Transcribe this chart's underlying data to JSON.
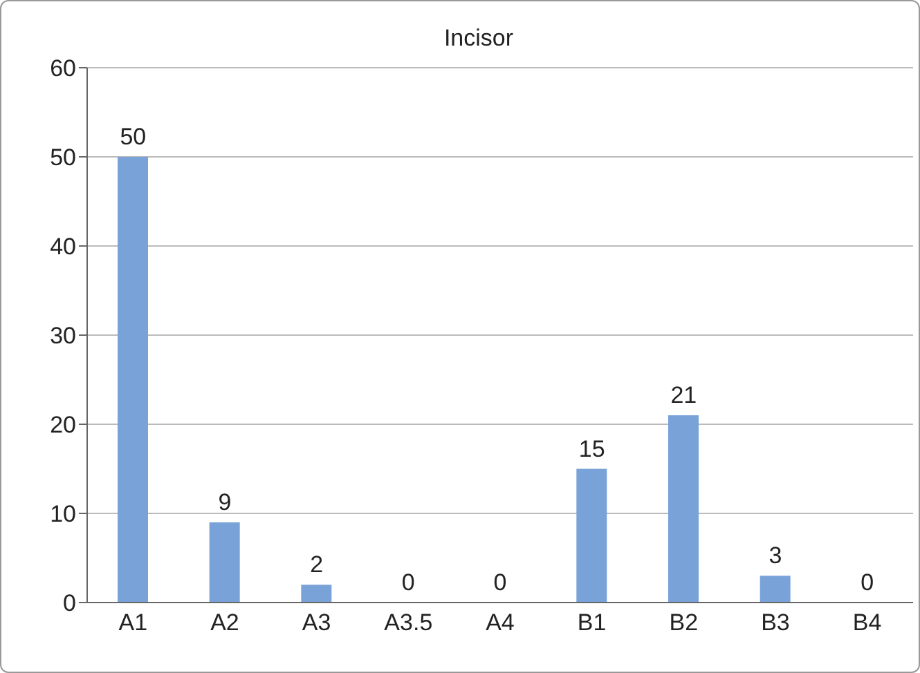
{
  "chart_data": {
    "type": "bar",
    "title": "Incisor",
    "categories": [
      "A1",
      "A2",
      "A3",
      "A3.5",
      "A4",
      "B1",
      "B2",
      "B3",
      "B4"
    ],
    "values": [
      50,
      9,
      2,
      0,
      0,
      15,
      21,
      3,
      0
    ],
    "color": "#79a2d8",
    "ylim": [
      0,
      60
    ],
    "yticks": [
      0,
      10,
      20,
      30,
      40,
      50,
      60
    ],
    "grid": "y",
    "data_labels": true
  }
}
